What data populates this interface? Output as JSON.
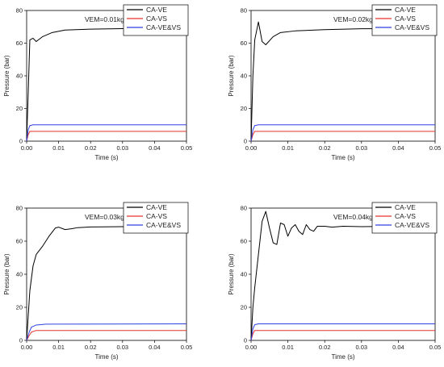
{
  "chart_data": [
    {
      "type": "line",
      "annotation": "VEM=0.01kg",
      "xlabel": "Time (s)",
      "ylabel": "Pressure (bar)",
      "xlim": [
        0,
        0.05
      ],
      "ylim": [
        0,
        80
      ],
      "xticks": [
        "0.00",
        "0.01",
        "0.02",
        "0.03",
        "0.04",
        "0.05"
      ],
      "yticks": [
        "0",
        "20",
        "40",
        "60",
        "80"
      ],
      "legend_position": "top-right",
      "series": [
        {
          "name": "CA-VE",
          "color": "#000000",
          "x": [
            0,
            0.0005,
            0.001,
            0.002,
            0.003,
            0.005,
            0.008,
            0.012,
            0.02,
            0.03,
            0.05
          ],
          "y": [
            0,
            30,
            62,
            63,
            61,
            64,
            66.5,
            68,
            68.6,
            68.9,
            69
          ]
        },
        {
          "name": "CA-VS",
          "color": "#e8322b",
          "x": [
            0,
            0.0005,
            0.001,
            0.0015,
            0.05
          ],
          "y": [
            0,
            4,
            6,
            6,
            6
          ]
        },
        {
          "name": "CA-VE&VS",
          "color": "#3040e0",
          "x": [
            0,
            0.0005,
            0.001,
            0.002,
            0.05
          ],
          "y": [
            0,
            7,
            9.5,
            10,
            10
          ]
        }
      ]
    },
    {
      "type": "line",
      "annotation": "VEM=0.02kg",
      "xlabel": "Time (s)",
      "ylabel": "Pressure (bar)",
      "xlim": [
        0,
        0.05
      ],
      "ylim": [
        0,
        80
      ],
      "xticks": [
        "0.00",
        "0.01",
        "0.02",
        "0.03",
        "0.04",
        "0.05"
      ],
      "yticks": [
        "0",
        "20",
        "40",
        "60",
        "80"
      ],
      "legend_position": "top-right",
      "series": [
        {
          "name": "CA-VE",
          "color": "#000000",
          "x": [
            0,
            0.0005,
            0.001,
            0.002,
            0.003,
            0.004,
            0.006,
            0.008,
            0.012,
            0.02,
            0.03,
            0.05
          ],
          "y": [
            0,
            40,
            62,
            73,
            61,
            59,
            64,
            66.5,
            67.5,
            68.3,
            68.8,
            69
          ]
        },
        {
          "name": "CA-VS",
          "color": "#e8322b",
          "x": [
            0,
            0.0005,
            0.001,
            0.0015,
            0.05
          ],
          "y": [
            0,
            4,
            6,
            6,
            6
          ]
        },
        {
          "name": "CA-VE&VS",
          "color": "#3040e0",
          "x": [
            0,
            0.0005,
            0.001,
            0.002,
            0.05
          ],
          "y": [
            0,
            7,
            9.5,
            10,
            10
          ]
        }
      ]
    },
    {
      "type": "line",
      "annotation": "VEM=0.03kg",
      "xlabel": "Time (s)",
      "ylabel": "Pressure (bar)",
      "xlim": [
        0,
        0.05
      ],
      "ylim": [
        0,
        80
      ],
      "xticks": [
        "0.00",
        "0.01",
        "0.02",
        "0.03",
        "0.04",
        "0.05"
      ],
      "yticks": [
        "0",
        "20",
        "40",
        "60",
        "80"
      ],
      "legend_position": "top-right",
      "series": [
        {
          "name": "CA-VE",
          "color": "#000000",
          "x": [
            0,
            0.0005,
            0.001,
            0.002,
            0.003,
            0.005,
            0.007,
            0.009,
            0.01,
            0.012,
            0.014,
            0.016,
            0.02,
            0.03,
            0.05
          ],
          "y": [
            0,
            15,
            30,
            45,
            52,
            57,
            63,
            68,
            68.5,
            67,
            67.5,
            68.2,
            68.6,
            68.8,
            69
          ]
        },
        {
          "name": "CA-VS",
          "color": "#e8322b",
          "x": [
            0,
            0.0008,
            0.0015,
            0.003,
            0.05
          ],
          "y": [
            0,
            3,
            5,
            6,
            6
          ]
        },
        {
          "name": "CA-VE&VS",
          "color": "#3040e0",
          "x": [
            0,
            0.0008,
            0.0015,
            0.003,
            0.006,
            0.05
          ],
          "y": [
            0,
            5,
            8,
            9.3,
            9.8,
            10
          ]
        }
      ]
    },
    {
      "type": "line",
      "annotation": "VEM=0.04kg",
      "xlabel": "Time (s)",
      "ylabel": "Pressure (bar)",
      "xlim": [
        0,
        0.05
      ],
      "ylim": [
        0,
        80
      ],
      "xticks": [
        "0.00",
        "0.01",
        "0.02",
        "0.03",
        "0.04",
        "0.05"
      ],
      "yticks": [
        "0",
        "20",
        "40",
        "60",
        "80"
      ],
      "legend_position": "top-right",
      "series": [
        {
          "name": "CA-VE",
          "color": "#000000",
          "x": [
            0,
            0.0005,
            0.001,
            0.002,
            0.003,
            0.004,
            0.005,
            0.006,
            0.007,
            0.008,
            0.009,
            0.01,
            0.011,
            0.012,
            0.013,
            0.014,
            0.015,
            0.016,
            0.017,
            0.018,
            0.02,
            0.022,
            0.025,
            0.03,
            0.04,
            0.05
          ],
          "y": [
            0,
            20,
            32,
            52,
            72,
            78,
            68,
            59,
            58,
            71,
            70,
            63,
            68,
            70,
            66,
            64,
            70,
            67,
            66,
            69,
            69,
            68.5,
            69,
            68.8,
            69,
            69
          ]
        },
        {
          "name": "CA-VS",
          "color": "#e8322b",
          "x": [
            0,
            0.0005,
            0.001,
            0.0015,
            0.05
          ],
          "y": [
            0,
            4,
            6,
            6,
            6
          ]
        },
        {
          "name": "CA-VE&VS",
          "color": "#3040e0",
          "x": [
            0,
            0.0005,
            0.001,
            0.002,
            0.05
          ],
          "y": [
            0,
            7,
            9.5,
            10,
            10
          ]
        }
      ]
    }
  ]
}
